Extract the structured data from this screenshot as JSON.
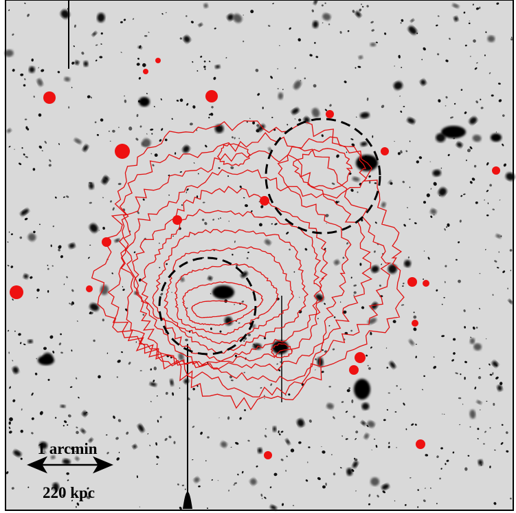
{
  "scale_bar": {
    "angular": "1 arcmin",
    "physical": "220 kpc"
  }
}
